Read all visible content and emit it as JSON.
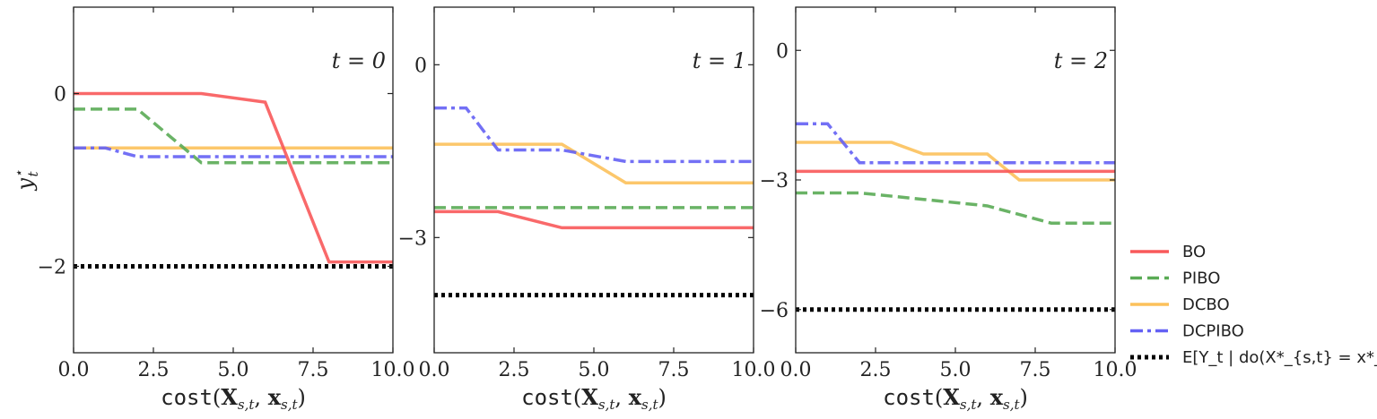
{
  "chart_data": [
    {
      "type": "line",
      "panel_label": "t = 0",
      "xlabel_mono": "cost",
      "xlabel_args": "(X_{s,t}, x_{s,t})",
      "ylabel": "y_t*",
      "xlim": [
        0,
        10
      ],
      "ylim": [
        -3,
        1
      ],
      "xticks": [
        0,
        2.5,
        5,
        7.5,
        10
      ],
      "xtick_labels": [
        "0.0",
        "2.5",
        "5.0",
        "7.5",
        "10.0"
      ],
      "yticks": [
        0,
        -2
      ],
      "ytick_labels": [
        "0",
        "−2"
      ],
      "series": [
        {
          "name": "BO",
          "x": [
            0,
            4,
            6,
            8,
            10
          ],
          "y": [
            0,
            0,
            -0.1,
            -1.95,
            -1.95
          ]
        },
        {
          "name": "PIBO",
          "x": [
            0,
            2,
            4,
            10
          ],
          "y": [
            -0.18,
            -0.18,
            -0.8,
            -0.8
          ]
        },
        {
          "name": "DCBO",
          "x": [
            0,
            10
          ],
          "y": [
            -0.63,
            -0.63
          ]
        },
        {
          "name": "DCPIBO",
          "x": [
            0,
            1,
            2,
            10
          ],
          "y": [
            -0.63,
            -0.63,
            -0.73,
            -0.73
          ]
        },
        {
          "name": "optimum",
          "x": [
            0,
            10
          ],
          "y": [
            -2,
            -2
          ]
        }
      ]
    },
    {
      "type": "line",
      "panel_label": "t = 1",
      "xlabel_mono": "cost",
      "xlabel_args": "(X_{s,t}, x_{s,t})",
      "xlim": [
        0,
        10
      ],
      "ylim": [
        -5,
        1
      ],
      "xticks": [
        0,
        2.5,
        5,
        7.5,
        10
      ],
      "xtick_labels": [
        "0.0",
        "2.5",
        "5.0",
        "7.5",
        "10.0"
      ],
      "yticks": [
        0,
        -3
      ],
      "ytick_labels": [
        "0",
        "−3"
      ],
      "series": [
        {
          "name": "BO",
          "x": [
            0,
            2,
            4,
            10
          ],
          "y": [
            -2.55,
            -2.55,
            -2.83,
            -2.83
          ]
        },
        {
          "name": "PIBO",
          "x": [
            0,
            10
          ],
          "y": [
            -2.48,
            -2.48
          ]
        },
        {
          "name": "DCBO",
          "x": [
            0,
            4,
            6,
            10
          ],
          "y": [
            -1.38,
            -1.38,
            -2.05,
            -2.05
          ]
        },
        {
          "name": "DCPIBO",
          "x": [
            0,
            1,
            2,
            4,
            6,
            10
          ],
          "y": [
            -0.75,
            -0.75,
            -1.48,
            -1.48,
            -1.68,
            -1.68
          ]
        },
        {
          "name": "optimum",
          "x": [
            0,
            10
          ],
          "y": [
            -4.0,
            -4.0
          ]
        }
      ]
    },
    {
      "type": "line",
      "panel_label": "t = 2",
      "xlabel_mono": "cost",
      "xlabel_args": "(X_{s,t}, x_{s,t})",
      "xlim": [
        0,
        10
      ],
      "ylim": [
        -7,
        1
      ],
      "xticks": [
        0,
        2.5,
        5,
        7.5,
        10
      ],
      "xtick_labels": [
        "0.0",
        "2.5",
        "5.0",
        "7.5",
        "10.0"
      ],
      "yticks": [
        0,
        -3,
        -6
      ],
      "ytick_labels": [
        "0",
        "−3",
        "−6"
      ],
      "series": [
        {
          "name": "BO",
          "x": [
            0,
            10
          ],
          "y": [
            -2.8,
            -2.8
          ]
        },
        {
          "name": "PIBO",
          "x": [
            0,
            2,
            4,
            6,
            8,
            10
          ],
          "y": [
            -3.3,
            -3.3,
            -3.45,
            -3.6,
            -4.0,
            -4.0
          ]
        },
        {
          "name": "DCBO",
          "x": [
            0,
            3,
            4,
            6,
            7,
            10
          ],
          "y": [
            -2.13,
            -2.13,
            -2.4,
            -2.4,
            -3.0,
            -3.0
          ]
        },
        {
          "name": "DCPIBO",
          "x": [
            0,
            1,
            2,
            10
          ],
          "y": [
            -1.7,
            -1.7,
            -2.6,
            -2.6
          ]
        },
        {
          "name": "optimum",
          "x": [
            0,
            10
          ],
          "y": [
            -6.0,
            -6.0
          ]
        }
      ]
    }
  ],
  "legend": {
    "placement": "right",
    "entries": [
      {
        "label": "BO",
        "color": "#f8595a",
        "style": "solid"
      },
      {
        "label": "PIBO",
        "color": "#5aab55",
        "style": "dashed"
      },
      {
        "label": "DCBO",
        "color": "#fcc15b",
        "style": "solid"
      },
      {
        "label": "DCPIBO",
        "color": "#6461f4",
        "style": "dashdot"
      },
      {
        "label": "E[Y_t | do(X*_{s,t} = x*_{s,t})]",
        "color": "#000000",
        "style": "dotted"
      }
    ]
  }
}
